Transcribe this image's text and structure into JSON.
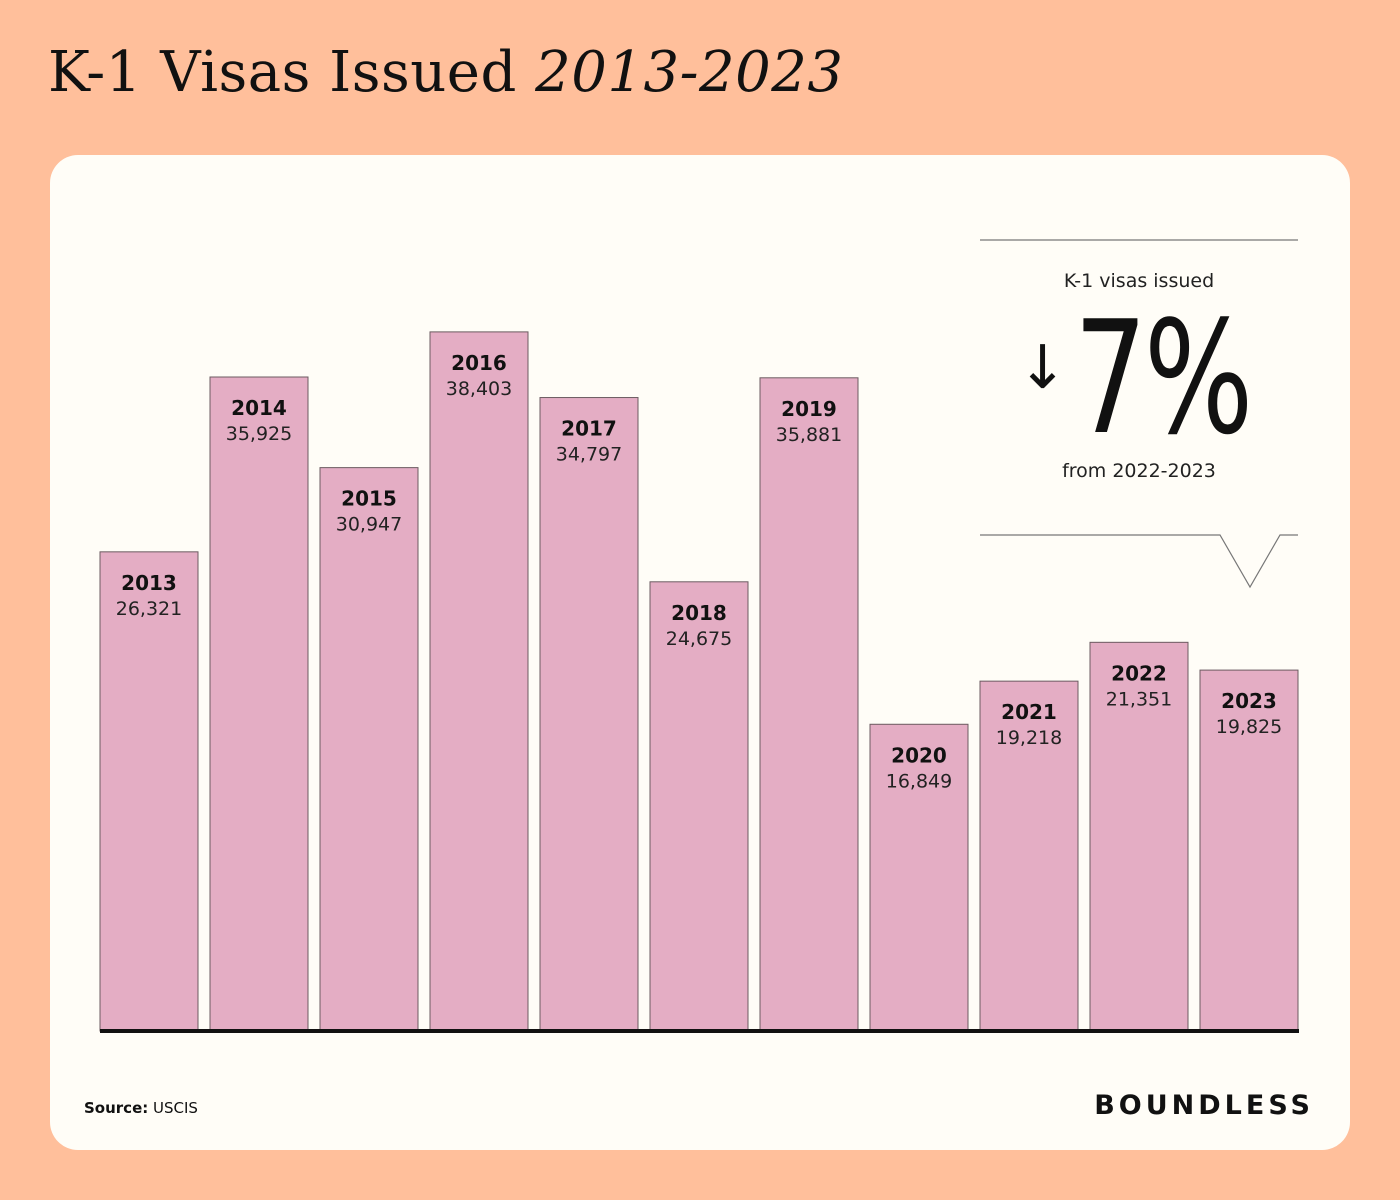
{
  "title": {
    "main": "K-1 Visas Issued",
    "italic": "2013-2023"
  },
  "chart_data": {
    "type": "bar",
    "title": "K-1 Visas Issued 2013-2023",
    "categories": [
      "2013",
      "2014",
      "2015",
      "2016",
      "2017",
      "2018",
      "2019",
      "2020",
      "2021",
      "2022",
      "2023"
    ],
    "values": [
      26321,
      35925,
      30947,
      38403,
      34797,
      24675,
      35881,
      16849,
      19218,
      21351,
      19825
    ],
    "value_labels": [
      "26,321",
      "35,925",
      "30,947",
      "38,403",
      "34,797",
      "24,675",
      "35,881",
      "16,849",
      "19,218",
      "21,351",
      "19,825"
    ],
    "xlabel": "",
    "ylabel": "",
    "ylim": [
      0,
      44000
    ],
    "grid": false,
    "bar_color": "#e4adc4"
  },
  "callout": {
    "label": "K-1 visas issued",
    "arrow": "↓",
    "arrow_icon": "arrow-down-icon",
    "value": "7%",
    "sub": "from 2022-2023"
  },
  "footer": {
    "source_label": "Source:",
    "source_value": "USCIS",
    "brand": "BOUNDLESS"
  },
  "colors": {
    "background": "#ffbf9b",
    "card": "#fffdf7",
    "bar": "#e4adc4",
    "text": "#111111"
  }
}
